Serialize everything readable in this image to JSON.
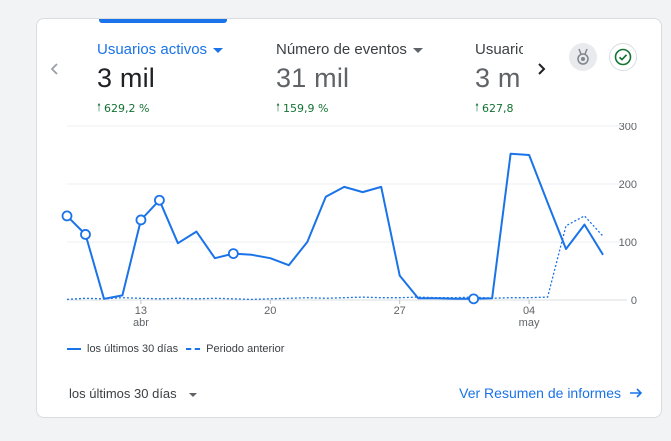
{
  "metrics": [
    {
      "label": "Usuarios activos",
      "value": "3 mil",
      "delta": "629,2 %"
    },
    {
      "label": "Número de eventos",
      "value": "31 mil",
      "delta": "159,9 %"
    },
    {
      "label": "Usuarios",
      "value": "3 m",
      "delta": "627,8"
    }
  ],
  "icons": {
    "insights": "medal-icon",
    "status": "check-circle-icon"
  },
  "colors": {
    "accent": "#1a73e8",
    "positive": "#137333"
  },
  "chart_data": {
    "type": "line",
    "y_ticks": [
      "300",
      "200",
      "100",
      "0"
    ],
    "ylim": [
      0,
      300
    ],
    "x_ticks": [
      {
        "day": 4,
        "label": "13",
        "sublabel": "abr"
      },
      {
        "day": 11,
        "label": "20",
        "sublabel": ""
      },
      {
        "day": 18,
        "label": "27",
        "sublabel": ""
      },
      {
        "day": 25,
        "label": "04",
        "sublabel": "may"
      }
    ],
    "series": [
      {
        "name": "los últimos 30 días",
        "style": "solid",
        "values": [
          145,
          113,
          2,
          8,
          138,
          172,
          98,
          118,
          72,
          80,
          78,
          72,
          60,
          100,
          178,
          195,
          186,
          195,
          42,
          3,
          3,
          2,
          2,
          3,
          252,
          250,
          168,
          88,
          130,
          78
        ],
        "markers": [
          0,
          1,
          4,
          5,
          9,
          22
        ]
      },
      {
        "name": "Periodo anterior",
        "style": "dashed",
        "values": [
          1,
          3,
          2,
          4,
          3,
          2,
          3,
          2,
          3,
          2,
          1,
          2,
          3,
          4,
          3,
          4,
          5,
          4,
          4,
          5,
          4,
          4,
          5,
          3,
          4,
          4,
          5,
          128,
          145,
          110
        ]
      }
    ]
  },
  "footer": {
    "range_label": "los últimos 30 días",
    "link_label": "Ver Resumen de informes"
  }
}
